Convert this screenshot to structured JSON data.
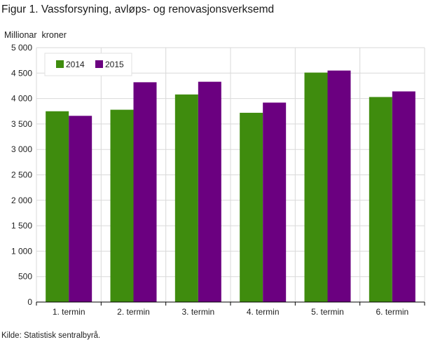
{
  "figure": {
    "title": "Figur 1. Vassforsyning, avløps- og renovasjonsverksemd",
    "source": "Kilde: Statistisk sentralbyrå."
  },
  "chart_data": {
    "type": "bar",
    "title": "Figur 1. Vassforsyning, avløps- og renovasjonsverksemd",
    "ylabel": "Millionar  kroner",
    "xlabel": "",
    "categories": [
      "1. termin",
      "2. termin",
      "3. termin",
      "4. termin",
      "5. termin",
      "6. termin"
    ],
    "series": [
      {
        "name": "2014",
        "color": "#3f8c0e",
        "values": [
          3750,
          3780,
          4080,
          3720,
          4510,
          4030
        ]
      },
      {
        "name": "2015",
        "color": "#6b0080",
        "values": [
          3660,
          4320,
          4330,
          3920,
          4550,
          4140
        ]
      }
    ],
    "ylim": [
      0,
      5000
    ],
    "yticks": [
      0,
      500,
      1000,
      1500,
      2000,
      2500,
      3000,
      3500,
      4000,
      4500,
      5000
    ],
    "ytick_labels": [
      "0",
      "500",
      "1 000",
      "1 500",
      "2 000",
      "2 500",
      "3 000",
      "3 500",
      "4 000",
      "4 500",
      "5 000"
    ],
    "grid": {
      "horizontal": true,
      "vertical": true,
      "color": "#d9d9d9"
    },
    "legend_position": "top-left"
  }
}
